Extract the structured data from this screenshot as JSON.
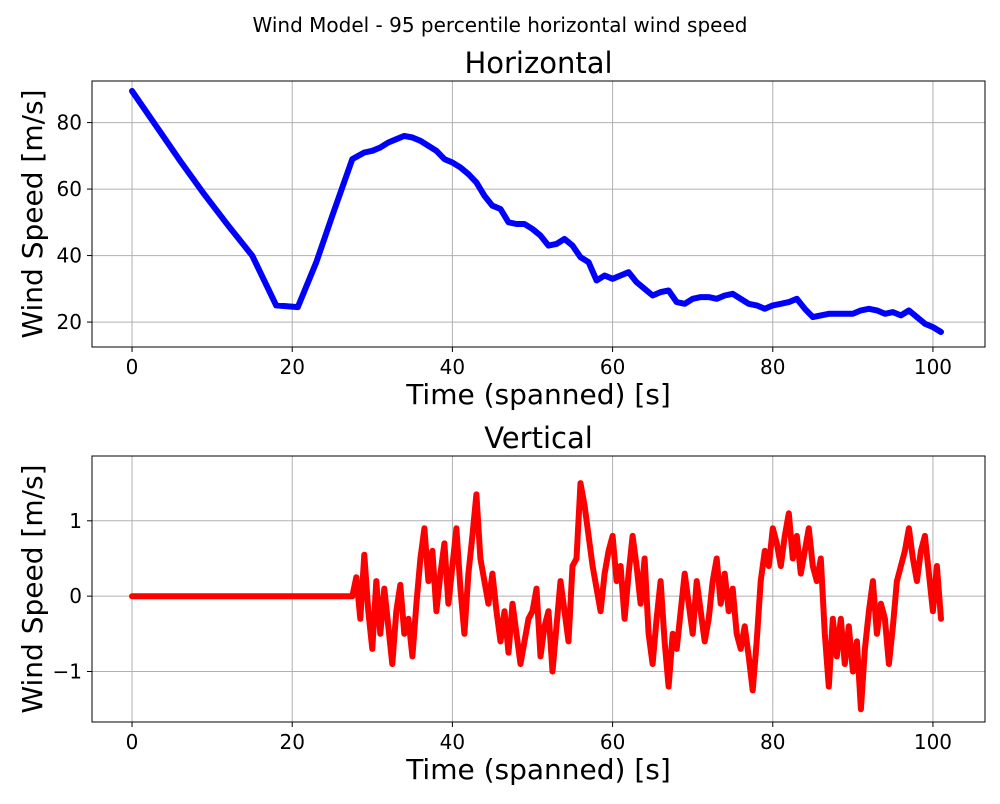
{
  "suptitle": "Wind Model - 95 percentile horizontal wind speed",
  "chart_data": [
    {
      "type": "line",
      "title": "Horizontal",
      "xlabel": "Time (spanned) [s]",
      "ylabel": "Wind Speed [m/s]",
      "xlim": [
        -5,
        106.5
      ],
      "ylim": [
        12.5,
        92.5
      ],
      "xticks": [
        0,
        20,
        40,
        60,
        80,
        100
      ],
      "yticks": [
        20,
        40,
        60,
        80
      ],
      "ytick_labels": [
        "20",
        "40",
        "60",
        "80"
      ],
      "grid": true,
      "series": [
        {
          "name": "horizontal",
          "color": "#0000ff",
          "x": [
            0,
            3,
            6,
            9,
            12,
            15,
            18,
            20.7,
            23,
            25,
            27.5,
            29,
            30,
            31,
            32,
            33,
            34,
            35,
            36,
            37,
            38,
            39,
            40,
            41,
            42,
            43,
            44,
            45,
            46,
            47,
            48,
            49,
            50,
            51,
            52,
            53,
            54,
            55,
            56,
            57,
            58,
            59,
            60,
            61,
            62,
            63,
            64,
            65,
            66,
            67,
            68,
            69,
            70,
            71,
            72,
            73,
            74,
            75,
            76,
            77,
            78,
            79,
            80,
            81,
            82,
            83,
            84,
            85,
            86,
            87,
            88,
            89,
            90,
            91,
            92,
            93,
            94,
            95,
            96,
            97,
            98,
            99,
            100,
            101
          ],
          "y": [
            89.5,
            79,
            68.5,
            58.5,
            49,
            40,
            25,
            24.5,
            38,
            52,
            69,
            71,
            71.5,
            72.5,
            74,
            75,
            76,
            75.5,
            74.5,
            73,
            71.5,
            69,
            68,
            66.5,
            64.5,
            62,
            58,
            55,
            54,
            50,
            49.5,
            49.5,
            48,
            46,
            43,
            43.5,
            45,
            43,
            39.5,
            38,
            32.5,
            34,
            33,
            34,
            35,
            32,
            30,
            28,
            29,
            29.5,
            26,
            25.5,
            27,
            27.5,
            27.5,
            27,
            28,
            28.5,
            27,
            25.5,
            25,
            24,
            25,
            25.5,
            26,
            27,
            24,
            21.5,
            22,
            22.5,
            22.5,
            22.5,
            22.5,
            23.5,
            24,
            23.5,
            22.5,
            23,
            22,
            23.5,
            21.5,
            19.5,
            18.5,
            17
          ]
        }
      ]
    },
    {
      "type": "line",
      "title": "Vertical",
      "xlabel": "Time (spanned) [s]",
      "ylabel": "Wind Speed [m/s]",
      "xlim": [
        -5,
        106.5
      ],
      "ylim": [
        -1.67,
        1.86
      ],
      "xticks": [
        0,
        20,
        40,
        60,
        80,
        100
      ],
      "yticks": [
        -1,
        0,
        1
      ],
      "ytick_labels": [
        "−1",
        "0",
        "1"
      ],
      "grid": true,
      "series": [
        {
          "name": "vertical",
          "color": "#ff0000",
          "x": [
            0,
            27.5,
            28,
            28.5,
            29,
            29.5,
            30,
            30.5,
            31,
            31.5,
            32,
            32.5,
            33,
            33.5,
            34,
            34.5,
            35,
            35.5,
            36,
            36.5,
            37,
            37.5,
            38,
            38.5,
            39,
            39.5,
            40,
            40.5,
            41,
            41.5,
            42,
            42.5,
            43,
            43.5,
            44,
            44.5,
            45,
            45.5,
            46,
            46.5,
            47,
            47.5,
            48,
            48.5,
            49,
            49.5,
            50,
            50.5,
            51,
            51.5,
            52,
            52.5,
            53,
            53.5,
            54,
            54.5,
            55,
            55.5,
            56,
            56.5,
            57,
            57.5,
            58,
            58.5,
            59,
            59.5,
            60,
            60.5,
            61,
            61.5,
            62,
            62.5,
            63,
            63.5,
            64,
            64.5,
            65,
            65.5,
            66,
            66.5,
            67,
            67.5,
            68,
            68.5,
            69,
            69.5,
            70,
            70.5,
            71,
            71.5,
            72,
            72.5,
            73,
            73.5,
            74,
            74.5,
            75,
            75.5,
            76,
            76.5,
            77,
            77.5,
            78,
            78.5,
            79,
            79.5,
            80,
            80.5,
            81,
            81.5,
            82,
            82.5,
            83,
            83.5,
            84,
            84.5,
            85,
            85.5,
            86,
            86.5,
            87,
            87.5,
            88,
            88.5,
            89,
            89.5,
            90,
            90.5,
            91,
            91.5,
            92,
            92.5,
            93,
            93.5,
            94,
            94.5,
            95,
            95.5,
            96,
            96.5,
            97,
            97.5,
            98,
            98.5,
            99,
            99.5,
            100,
            100.5,
            101
          ],
          "y": [
            0,
            0,
            0.25,
            -0.3,
            0.55,
            -0.2,
            -0.7,
            0.2,
            -0.5,
            0.1,
            -0.4,
            -0.9,
            -0.2,
            0.15,
            -0.5,
            -0.3,
            -0.8,
            -0.1,
            0.5,
            0.9,
            0.2,
            0.6,
            -0.2,
            0.3,
            0.7,
            -0.1,
            0.4,
            0.9,
            0.1,
            -0.5,
            0.3,
            0.8,
            1.35,
            0.5,
            0.2,
            -0.1,
            0.3,
            -0.2,
            -0.6,
            -0.2,
            -0.75,
            -0.1,
            -0.5,
            -0.9,
            -0.6,
            -0.3,
            -0.2,
            0.1,
            -0.8,
            -0.4,
            -0.2,
            -1.0,
            -0.4,
            0.2,
            -0.2,
            -0.6,
            0.4,
            0.5,
            1.5,
            1.2,
            0.8,
            0.4,
            0.1,
            -0.2,
            0.3,
            0.6,
            0.8,
            0.2,
            0.4,
            -0.3,
            0.3,
            0.8,
            0.4,
            -0.1,
            0.5,
            -0.5,
            -0.9,
            -0.3,
            0.2,
            -0.6,
            -1.2,
            -0.5,
            -0.7,
            -0.2,
            0.3,
            -0.1,
            -0.5,
            0.2,
            -0.2,
            -0.6,
            -0.3,
            0.2,
            0.5,
            -0.1,
            0.3,
            -0.2,
            0.1,
            -0.5,
            -0.7,
            -0.4,
            -0.8,
            -1.25,
            -0.6,
            0.2,
            0.6,
            0.4,
            0.9,
            0.7,
            0.4,
            0.8,
            1.1,
            0.5,
            0.8,
            0.3,
            0.6,
            0.9,
            0.4,
            0.2,
            0.5,
            -0.5,
            -1.2,
            -0.3,
            -0.8,
            -0.3,
            -0.9,
            -0.4,
            -1.0,
            -0.6,
            -1.5,
            -0.7,
            -0.2,
            0.2,
            -0.5,
            -0.1,
            -0.3,
            -0.9,
            -0.4,
            0.2,
            0.4,
            0.6,
            0.9,
            0.5,
            0.2,
            0.6,
            0.8,
            0.3,
            -0.2,
            0.4,
            -0.3
          ]
        }
      ]
    }
  ]
}
